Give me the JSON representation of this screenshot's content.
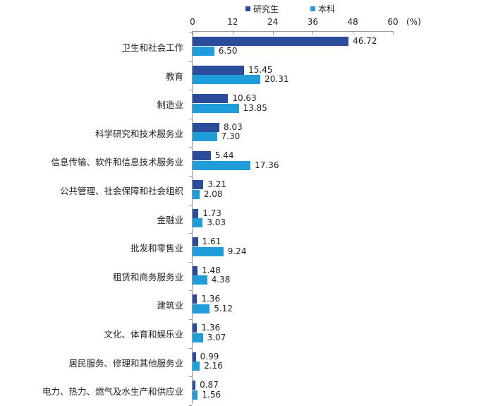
{
  "chart_data": {
    "type": "bar",
    "orientation": "horizontal",
    "title": "",
    "xlabel": "",
    "ylabel": "",
    "unit": "(%)",
    "xlim": [
      0,
      60
    ],
    "xticks": [
      0,
      12,
      24,
      36,
      48,
      60
    ],
    "grid": false,
    "legend_position": "top",
    "categories": [
      "卫生和社会工作",
      "教育",
      "制造业",
      "科学研究和技术服务业",
      "信息传输、软件和信息技术服务业",
      "公共管理、社会保障和社会组织",
      "金融业",
      "批发和零售业",
      "租赁和商务服务业",
      "建筑业",
      "文化、体育和娱乐业",
      "居民服务、修理和其他服务业",
      "电力、热力、燃气及水生产和供应业"
    ],
    "series": [
      {
        "name": "研究生",
        "color": "#2b4c9b",
        "values": [
          46.72,
          15.45,
          10.63,
          8.03,
          5.44,
          3.21,
          1.73,
          1.61,
          1.48,
          1.36,
          1.36,
          0.99,
          0.87
        ],
        "labels": [
          "46.72",
          "15.45",
          "10.63",
          "8.03",
          "5.44",
          "3.21",
          "1.73",
          "1.61",
          "1.48",
          "1.36",
          "1.36",
          "0.99",
          "0.87"
        ]
      },
      {
        "name": "本科",
        "color": "#1f9ddb",
        "values": [
          6.5,
          20.31,
          13.85,
          7.3,
          17.36,
          2.08,
          3.03,
          9.24,
          4.38,
          5.12,
          3.07,
          2.16,
          1.56
        ],
        "labels": [
          "6.50",
          "20.31",
          "13.85",
          "7.30",
          "17.36",
          "2.08",
          "3.03",
          "9.24",
          "4.38",
          "5.12",
          "3.07",
          "2.16",
          "1.56"
        ]
      }
    ]
  },
  "legend": {
    "items": [
      {
        "label": "研究生",
        "color": "#2b4c9b"
      },
      {
        "label": "本科",
        "color": "#1f9ddb"
      }
    ]
  },
  "axis": {
    "ticks": [
      "0",
      "12",
      "24",
      "36",
      "48",
      "60"
    ],
    "unit": "(%)"
  }
}
